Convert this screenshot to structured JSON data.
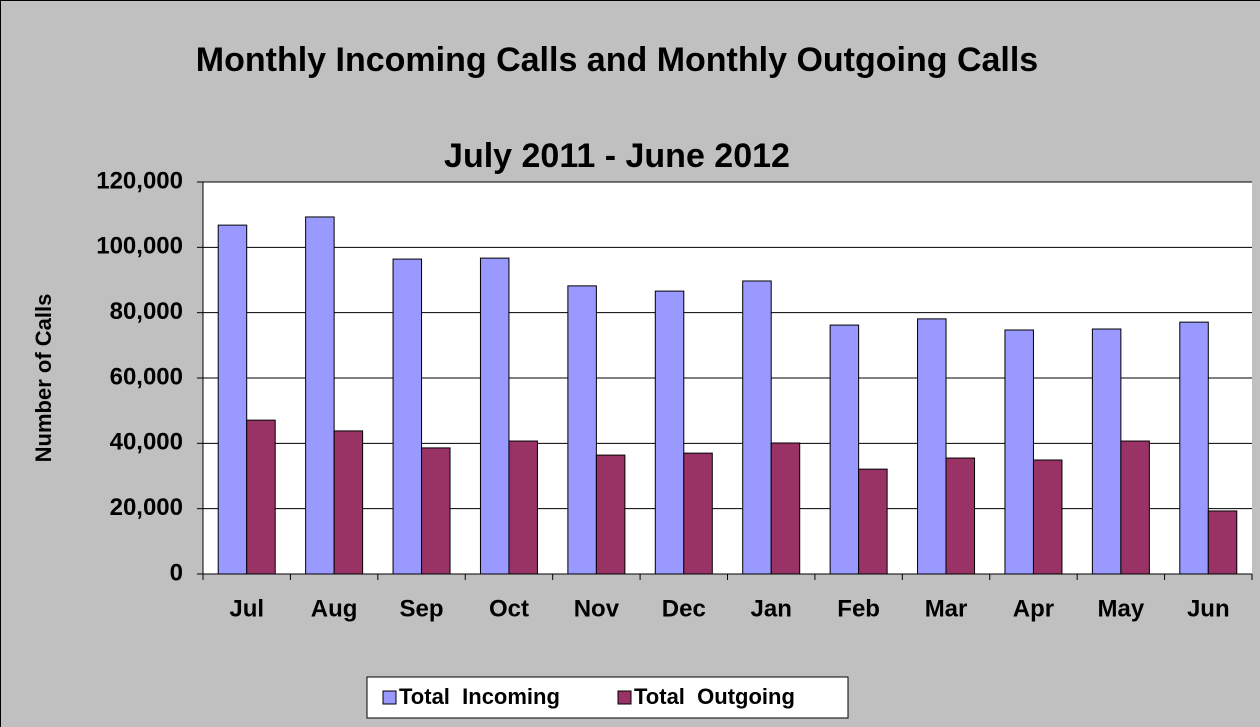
{
  "chart_data": {
    "type": "bar",
    "title": "Monthly Incoming Calls and Monthly Outgoing Calls",
    "subtitle": "July 2011 - June 2012",
    "y_label": "Number of Calls",
    "categories": [
      "Jul",
      "Aug",
      "Sep",
      "Oct",
      "Nov",
      "Dec",
      "Jan",
      "Feb",
      "Mar",
      "Apr",
      "May",
      "Jun"
    ],
    "series": [
      {
        "name": "Total  Incoming",
        "color": "#9999ff",
        "values": [
          106800,
          109300,
          96400,
          96700,
          88200,
          86600,
          89700,
          76200,
          78100,
          74700,
          75000,
          77100
        ]
      },
      {
        "name": "Total  Outgoing",
        "color": "#993366",
        "values": [
          47100,
          43800,
          38600,
          40700,
          36400,
          37000,
          40100,
          32100,
          35500,
          34900,
          40700,
          19300
        ]
      }
    ],
    "ylim": [
      0,
      120000
    ],
    "yticks": [
      0,
      {
        "value": 20000,
        "label": "20,000"
      },
      {
        "value": 40000,
        "label": "40,000"
      },
      {
        "value": 60000,
        "label": "60,000"
      },
      {
        "value": 80000,
        "label": "80,000"
      },
      {
        "value": 100000,
        "label": "100,000"
      },
      {
        "value": 120000,
        "label": "120,000"
      }
    ],
    "grid": true,
    "legend": "bottom"
  }
}
